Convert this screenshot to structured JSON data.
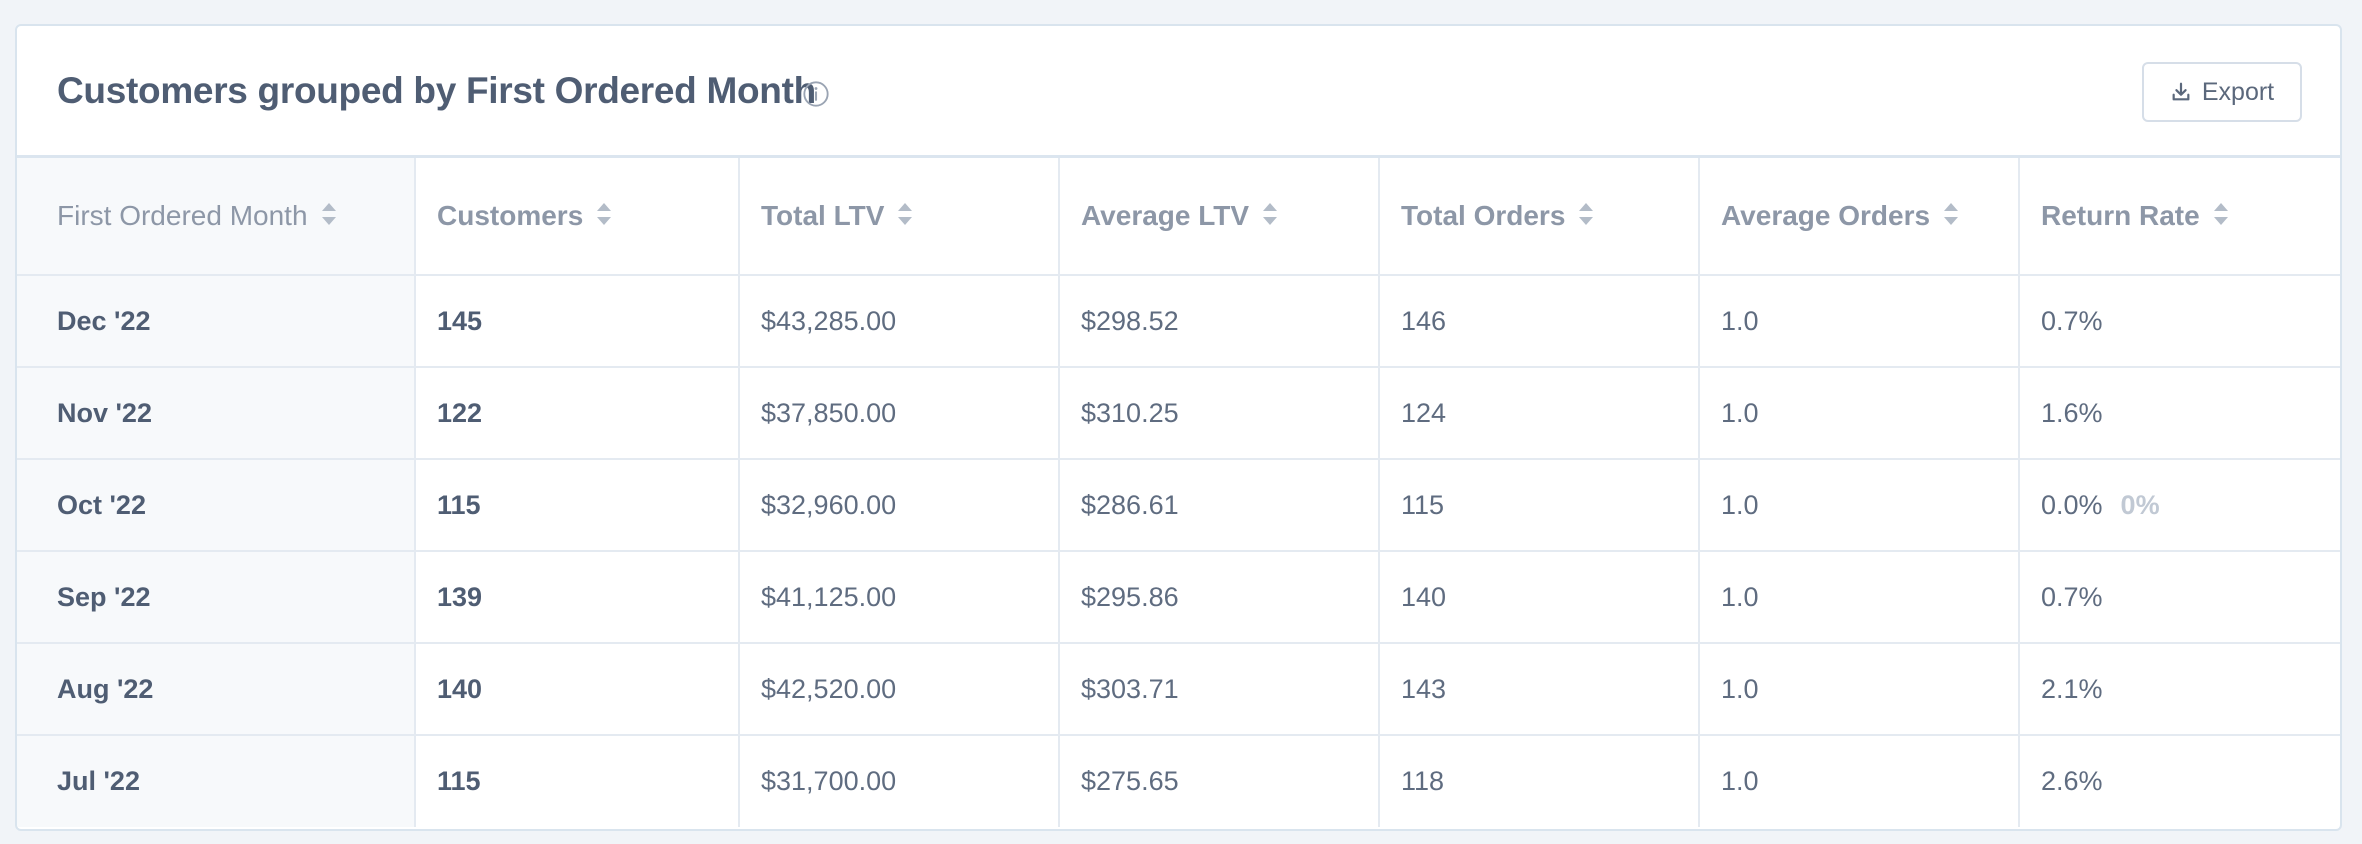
{
  "panel": {
    "title": "Customers grouped by First Ordered Month",
    "export_label": "Export"
  },
  "table": {
    "headers": [
      "First Ordered Month",
      "Customers",
      "Total LTV",
      "Average LTV",
      "Total Orders",
      "Average Orders",
      "Return Rate"
    ],
    "rows": [
      {
        "month": "Dec '22",
        "customers": "145",
        "total_ltv": "$43,285.00",
        "avg_ltv": "$298.52",
        "total_orders": "146",
        "avg_orders": "1.0",
        "return_rate": "0.7%",
        "badge": ""
      },
      {
        "month": "Nov '22",
        "customers": "122",
        "total_ltv": "$37,850.00",
        "avg_ltv": "$310.25",
        "total_orders": "124",
        "avg_orders": "1.0",
        "return_rate": "1.6%",
        "badge": ""
      },
      {
        "month": "Oct '22",
        "customers": "115",
        "total_ltv": "$32,960.00",
        "avg_ltv": "$286.61",
        "total_orders": "115",
        "avg_orders": "1.0",
        "return_rate": "0.0%",
        "badge": "0%"
      },
      {
        "month": "Sep '22",
        "customers": "139",
        "total_ltv": "$41,125.00",
        "avg_ltv": "$295.86",
        "total_orders": "140",
        "avg_orders": "1.0",
        "return_rate": "0.7%",
        "badge": ""
      },
      {
        "month": "Aug '22",
        "customers": "140",
        "total_ltv": "$42,520.00",
        "avg_ltv": "$303.71",
        "total_orders": "143",
        "avg_orders": "1.0",
        "return_rate": "2.1%",
        "badge": ""
      },
      {
        "month": "Jul '22",
        "customers": "115",
        "total_ltv": "$31,700.00",
        "avg_ltv": "$275.65",
        "total_orders": "118",
        "avg_orders": "1.0",
        "return_rate": "2.6%",
        "badge": ""
      }
    ]
  },
  "icons": {
    "info": "info-circle-icon",
    "export": "download-icon",
    "sort": "sort-icon"
  },
  "colors": {
    "title": "#4f5d73",
    "header_text": "#8d97a7",
    "body_text": "#5f6c80",
    "border": "#e4eaf1",
    "background": "#f1f4f8"
  }
}
